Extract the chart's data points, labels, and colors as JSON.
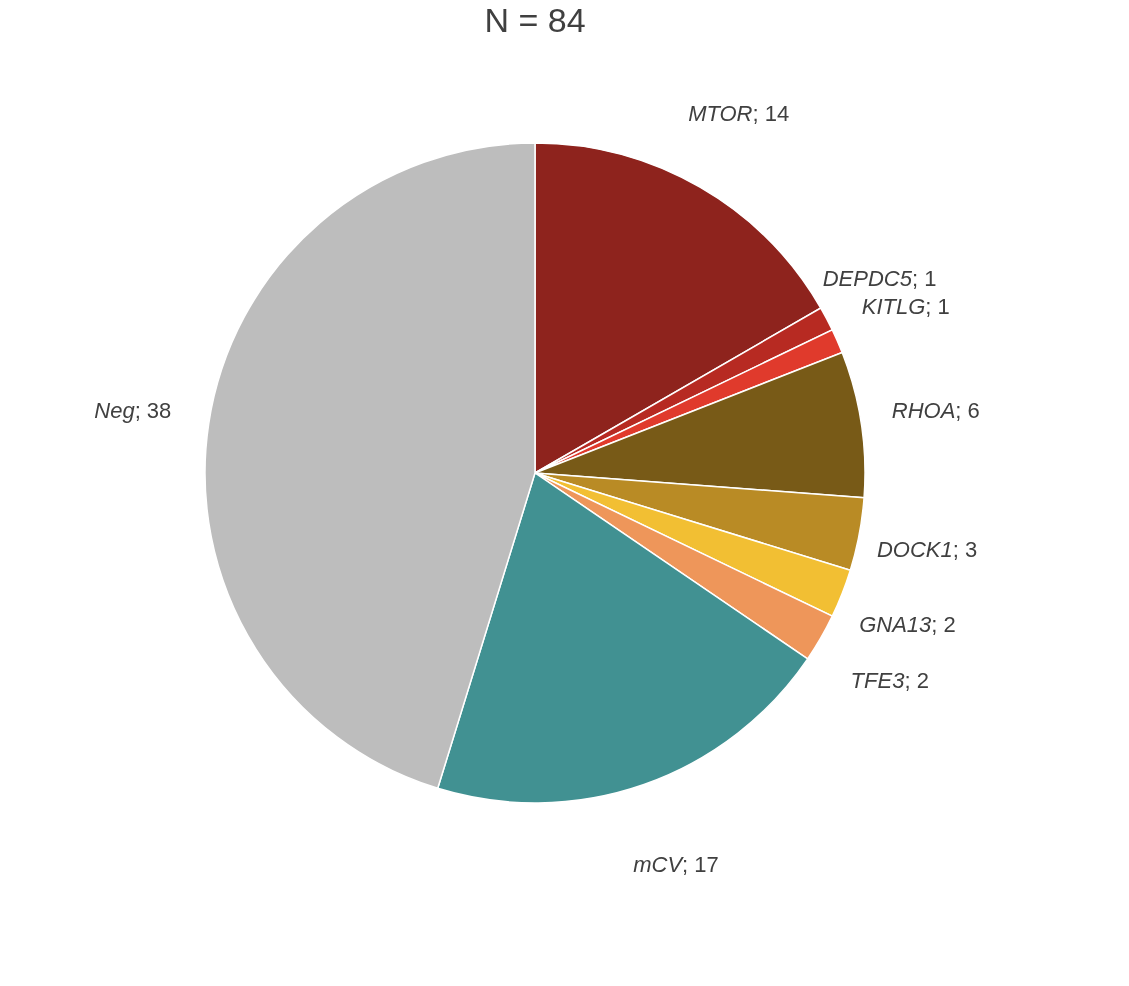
{
  "chart_data": {
    "type": "pie",
    "title": "N = 84",
    "categories": [
      "MTOR",
      "DEPDC5",
      "KITLG",
      "RHOA",
      "DOCK1",
      "GNA13",
      "TFE3",
      "mCV",
      "Neg"
    ],
    "values": [
      14,
      1,
      1,
      6,
      3,
      2,
      2,
      17,
      38
    ],
    "colors": [
      "#8e231d",
      "#b72a22",
      "#e03a2c",
      "#785a17",
      "#b98b25",
      "#f2bf33",
      "#ee965a",
      "#419192",
      "#bdbdbd"
    ],
    "value_labels": [
      "; 14",
      "; 1",
      "; 1",
      "; 6",
      "; 3",
      "; 2",
      "; 2",
      "; 17",
      "; 38"
    ]
  }
}
